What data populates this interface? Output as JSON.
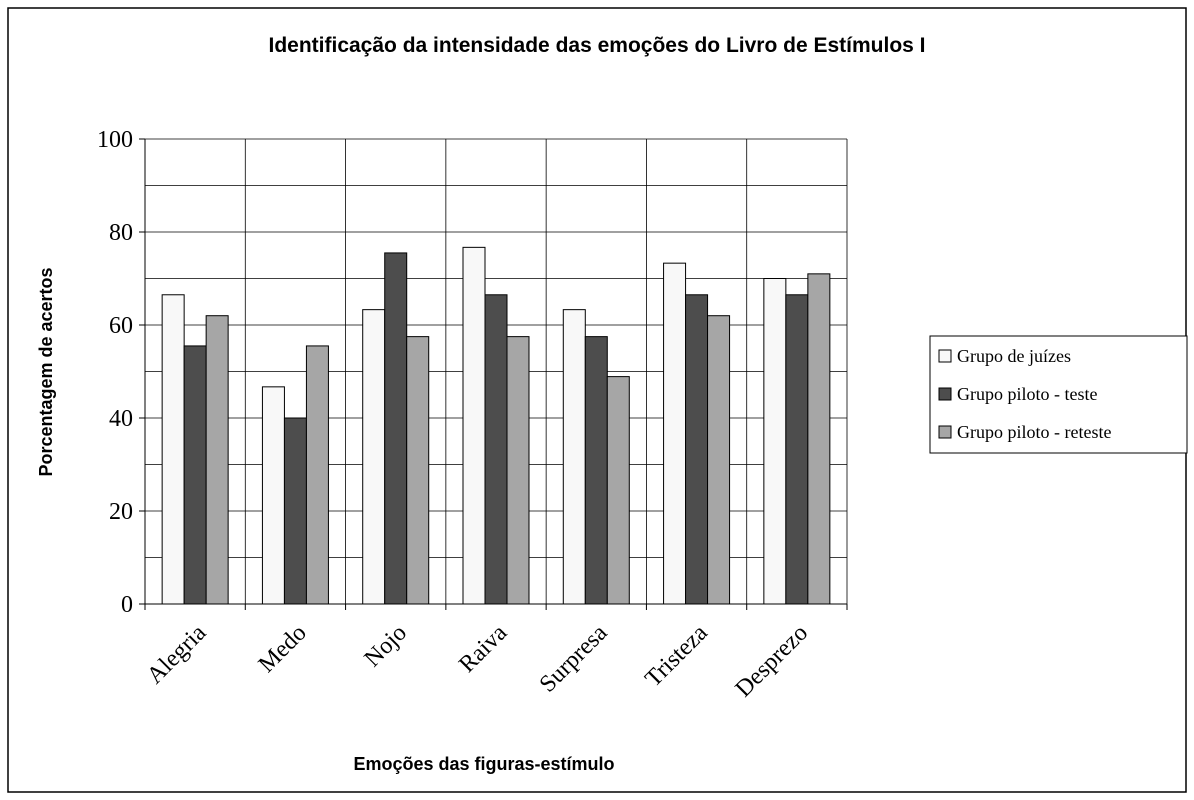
{
  "chart_data": {
    "type": "bar",
    "title": "Identificação da intensidade das emoções do Livro de Estímulos I",
    "x_label": "Emoções das figuras-estímulo",
    "y_label": "Porcentagem de acertos",
    "categories": [
      "Alegria",
      "Medo",
      "Nojo",
      "Raiva",
      "Surpresa",
      "Tristeza",
      "Desprezo"
    ],
    "series": [
      {
        "name": "Grupo de juízes",
        "color": "#f8f8f8",
        "values": [
          66.5,
          46.7,
          63.3,
          76.7,
          63.3,
          73.3,
          70
        ]
      },
      {
        "name": "Grupo piloto - teste",
        "color": "#4d4d4d",
        "values": [
          55.5,
          40,
          75.5,
          66.5,
          57.5,
          66.5,
          66.5
        ]
      },
      {
        "name": "Grupo piloto - reteste",
        "color": "#a6a6a6",
        "values": [
          62,
          55.5,
          57.5,
          57.5,
          48.9,
          62,
          71
        ]
      }
    ],
    "ylim": [
      0,
      100
    ],
    "yticks": [
      0,
      20,
      40,
      60,
      80,
      100
    ],
    "minor_grid": [
      10,
      30,
      50,
      70,
      90
    ],
    "grid": true,
    "legend": "right"
  }
}
